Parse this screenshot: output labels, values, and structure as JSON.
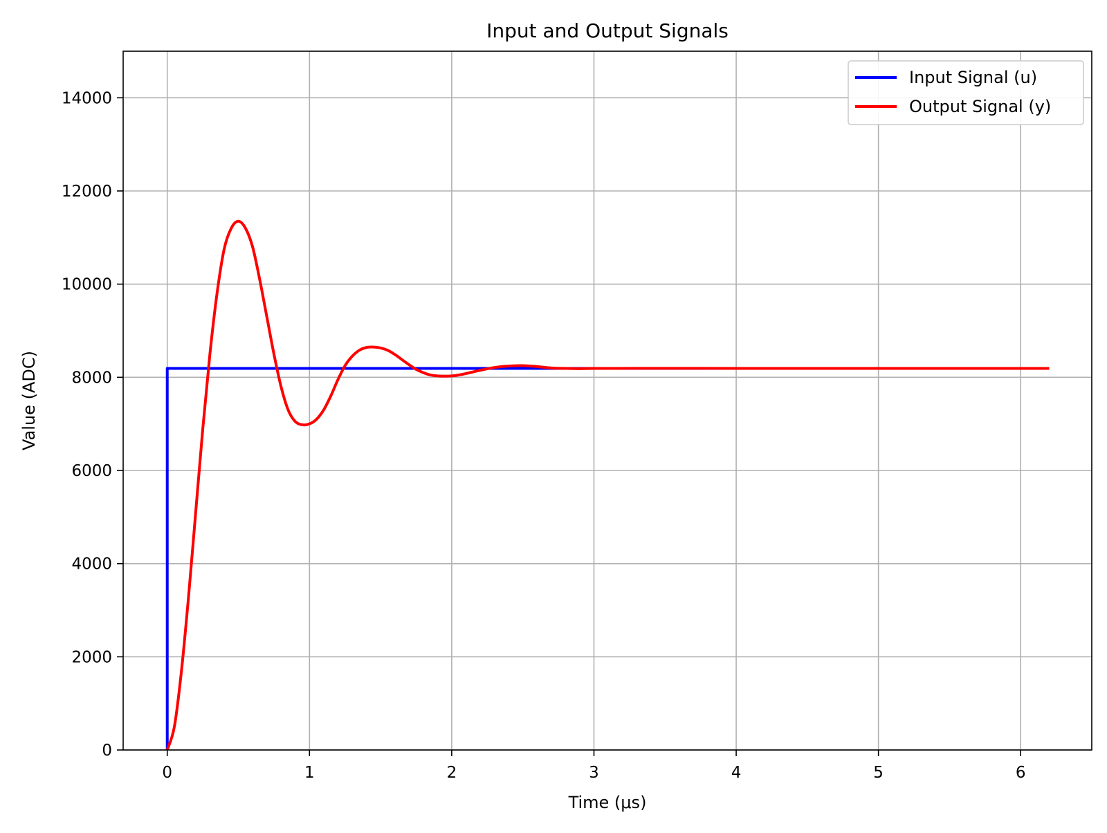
{
  "chart_data": {
    "type": "line",
    "title": "Input and Output Signals",
    "xlabel": "Time (μs)",
    "ylabel": "Value (ADC)",
    "xlim": [
      -0.31,
      6.5
    ],
    "ylim": [
      0,
      15000
    ],
    "xticks": [
      0,
      1,
      2,
      3,
      4,
      5,
      6
    ],
    "yticks": [
      0,
      2000,
      4000,
      6000,
      8000,
      10000,
      12000,
      14000
    ],
    "grid": true,
    "legend_position": "top-right",
    "series": [
      {
        "name": "Input Signal (u)",
        "color": "#0000ff",
        "x": [
          0,
          0,
          6.2
        ],
        "y": [
          0,
          8191,
          8191
        ]
      },
      {
        "name": "Output Signal (y)",
        "color": "#ff0000",
        "x": [
          0,
          0.05,
          0.1,
          0.15,
          0.2,
          0.25,
          0.3,
          0.35,
          0.4,
          0.45,
          0.5,
          0.55,
          0.6,
          0.65,
          0.7,
          0.75,
          0.8,
          0.85,
          0.9,
          0.95,
          1.0,
          1.05,
          1.1,
          1.15,
          1.2,
          1.25,
          1.3,
          1.35,
          1.4,
          1.45,
          1.5,
          1.55,
          1.6,
          1.65,
          1.7,
          1.75,
          1.8,
          1.85,
          1.9,
          1.95,
          2.0,
          2.05,
          2.1,
          2.2,
          2.3,
          2.4,
          2.5,
          2.6,
          2.7,
          2.8,
          2.9,
          3.0,
          3.5,
          4.0,
          4.5,
          5.0,
          5.5,
          6.0,
          6.2
        ],
        "y": [
          0,
          500,
          1700,
          3300,
          5100,
          6900,
          8500,
          9800,
          10750,
          11200,
          11350,
          11200,
          10800,
          10100,
          9300,
          8500,
          7800,
          7300,
          7050,
          6980,
          7000,
          7100,
          7300,
          7600,
          7950,
          8250,
          8450,
          8580,
          8640,
          8650,
          8630,
          8580,
          8490,
          8380,
          8270,
          8170,
          8100,
          8050,
          8030,
          8025,
          8030,
          8050,
          8080,
          8150,
          8210,
          8240,
          8250,
          8230,
          8200,
          8190,
          8185,
          8190,
          8192,
          8191,
          8191,
          8191,
          8191,
          8191,
          8191
        ]
      }
    ]
  }
}
